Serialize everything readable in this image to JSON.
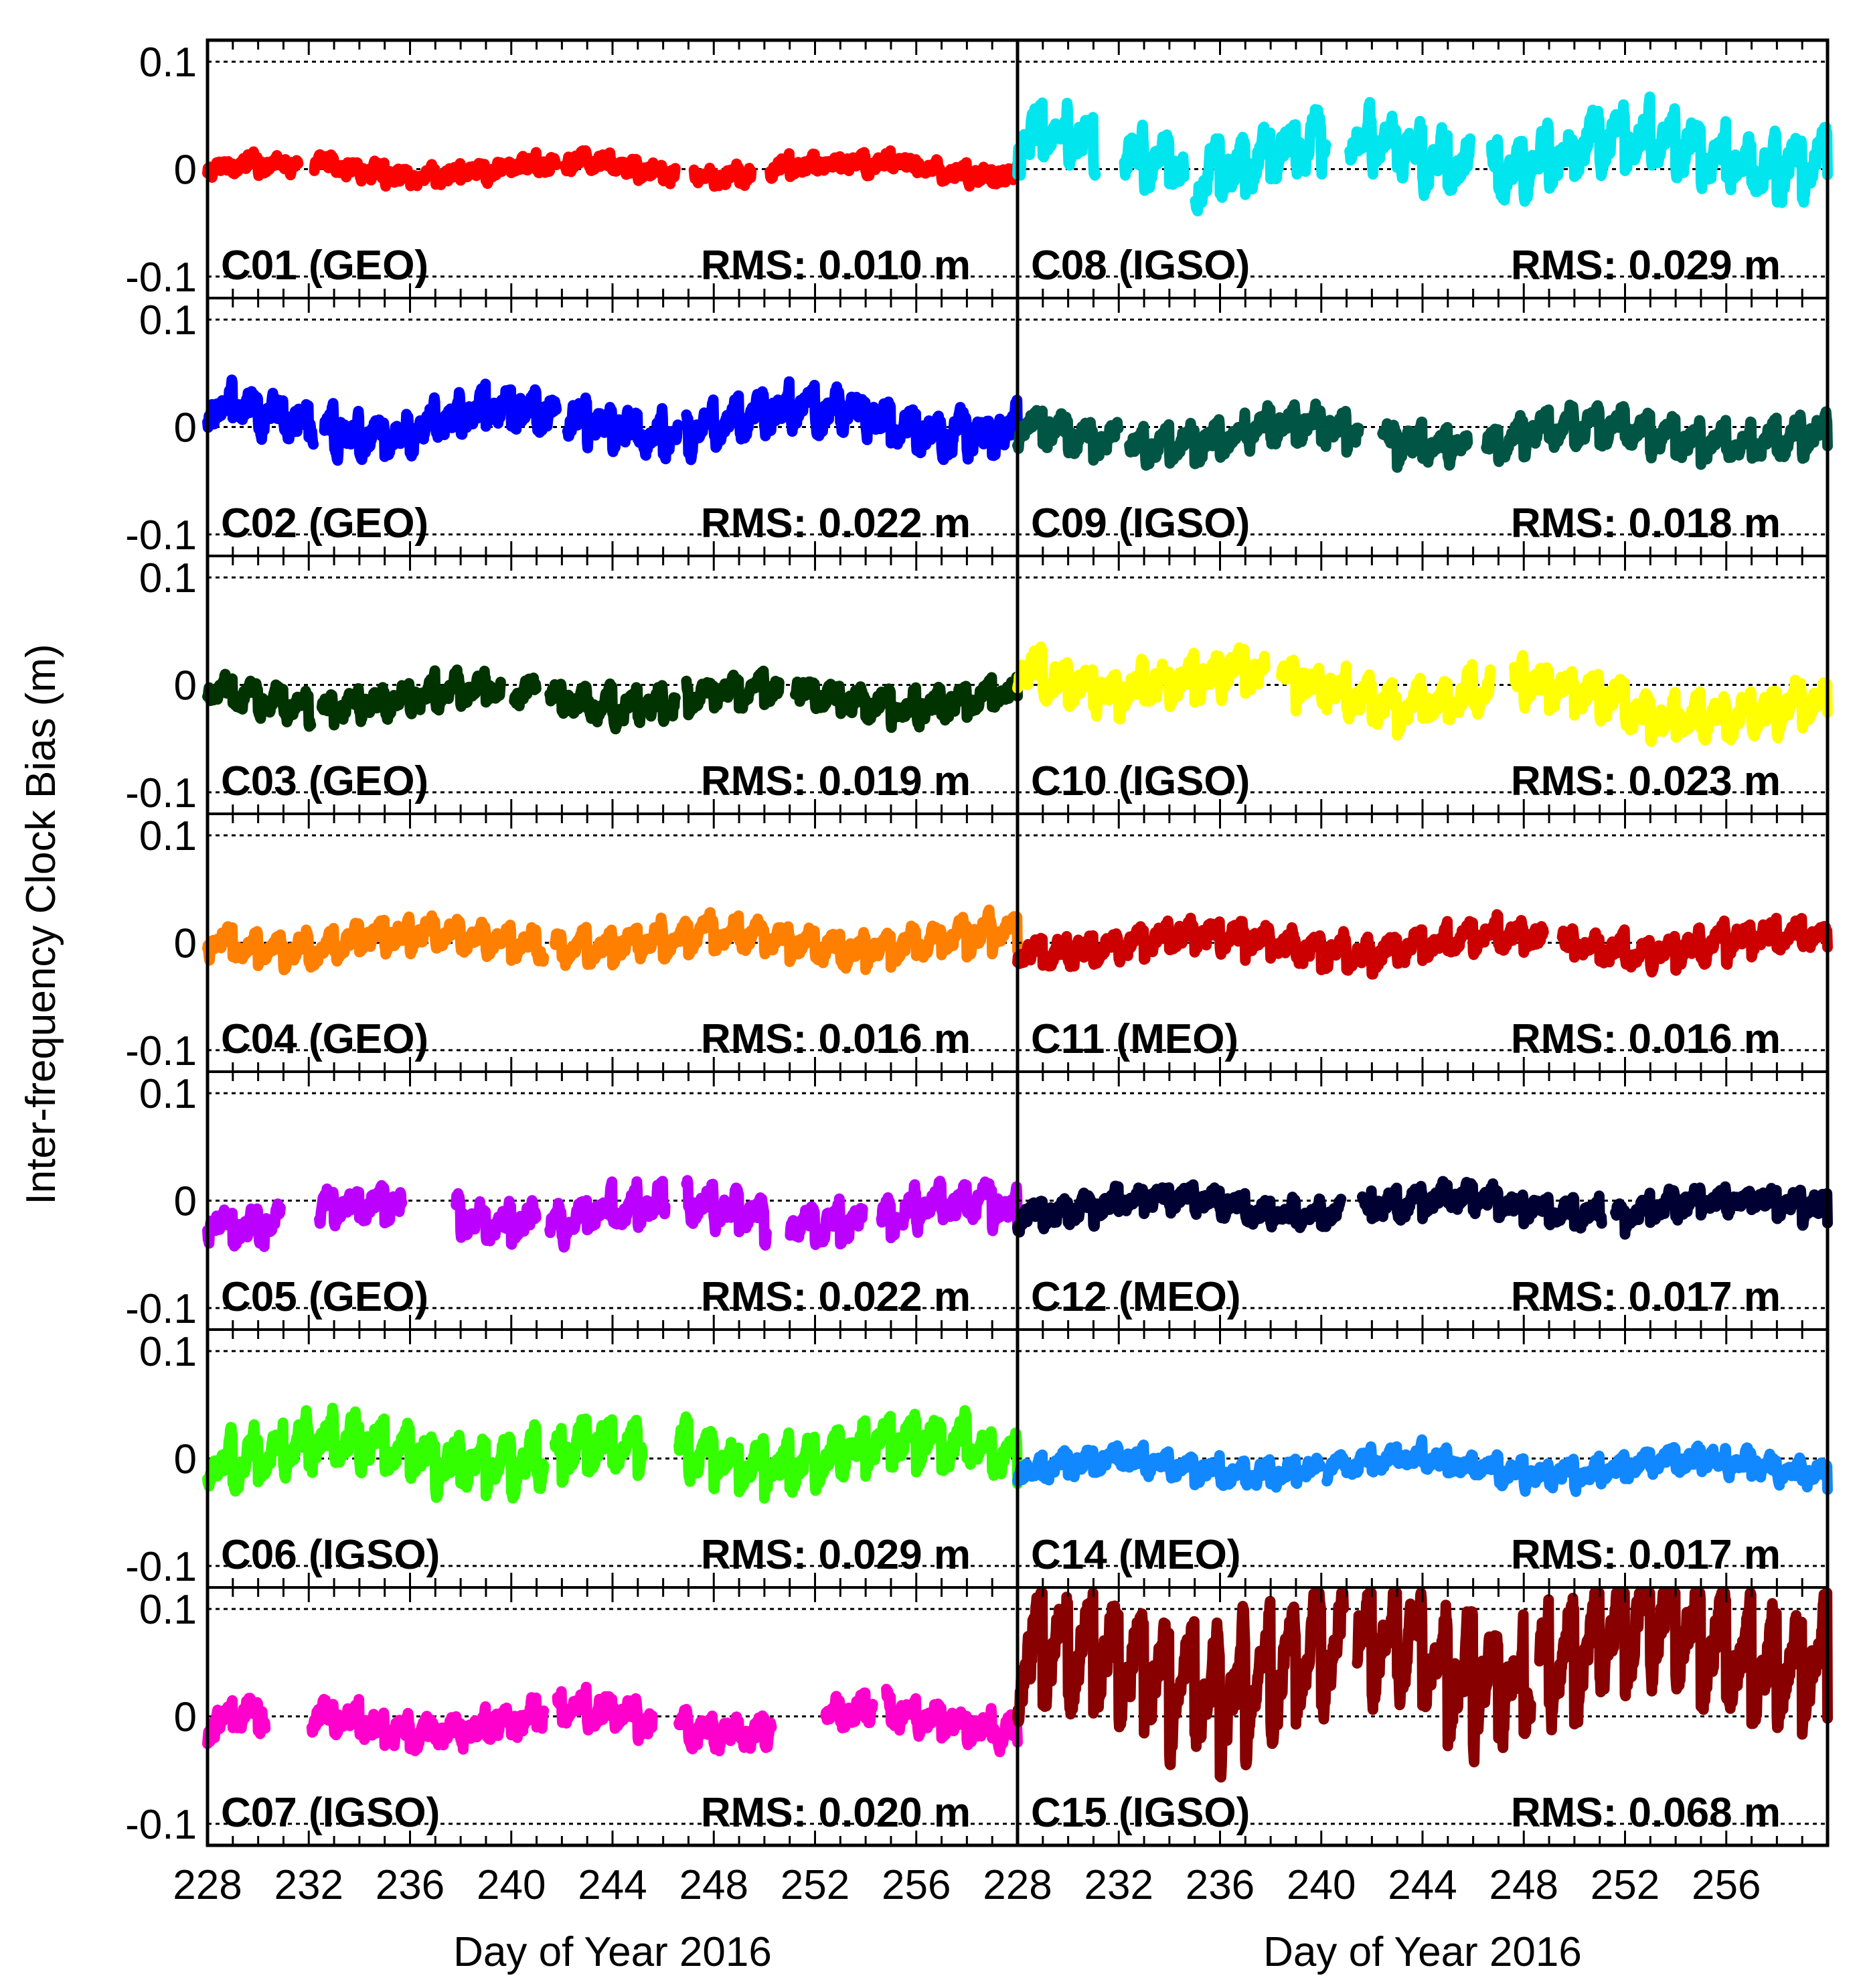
{
  "chart_data": {
    "type": "line",
    "ylabel": "Inter-frequency Clock Bias (m)",
    "xlabel": "Day of Year 2016",
    "xlim": [
      228,
      260
    ],
    "ylim": [
      -0.12,
      0.12
    ],
    "x_ticks": [
      "228",
      "232",
      "236",
      "240",
      "244",
      "248",
      "252",
      "256"
    ],
    "y_ticks": [
      {
        "value": 0.1,
        "label": "0.1"
      },
      {
        "value": 0,
        "label": "0"
      },
      {
        "value": -0.1,
        "label": "-0.1"
      }
    ],
    "rms_prefix": "RMS:",
    "panels": [
      {
        "id": "C01",
        "label": "C01 (GEO)",
        "orbit": "GEO",
        "rms": "RMS: 0.010 m",
        "color": "#ff0000",
        "column": 0,
        "row": 0,
        "amp": 0.011,
        "mean": 0.0,
        "osc": 0.007,
        "drift": 0.0,
        "gaps": [
          [
            231.6,
            232.2
          ],
          [
            241.8,
            242.1
          ],
          [
            246.5,
            247.2
          ],
          [
            249.5,
            250.2
          ]
        ]
      },
      {
        "id": "C02",
        "label": "C02 (GEO)",
        "orbit": "GEO",
        "rms": "RMS: 0.022 m",
        "color": "#0000ff",
        "column": 0,
        "row": 1,
        "amp": 0.02,
        "mean": 0.005,
        "osc": 0.02,
        "drift": 0.0,
        "gaps": [
          [
            232.2,
            232.6
          ],
          [
            241.8,
            242.2
          ],
          [
            246.6,
            246.9
          ]
        ]
      },
      {
        "id": "C03",
        "label": "C03 (GEO)",
        "orbit": "GEO",
        "rms": "RMS: 0.019 m",
        "color": "#003300",
        "column": 0,
        "row": 2,
        "amp": 0.015,
        "mean": -0.012,
        "osc": 0.015,
        "drift": 0.0,
        "gaps": [
          [
            232.1,
            232.5
          ],
          [
            239.6,
            240.1
          ],
          [
            241.0,
            241.5
          ],
          [
            246.5,
            246.9
          ],
          [
            250.6,
            251.2
          ]
        ]
      },
      {
        "id": "C04",
        "label": "C04 (GEO)",
        "orbit": "GEO",
        "rms": "RMS: 0.016 m",
        "color": "#ff7f00",
        "column": 0,
        "row": 3,
        "amp": 0.014,
        "mean": 0.002,
        "osc": 0.018,
        "drift": 0.0,
        "gaps": [
          [
            241.3,
            241.7
          ]
        ]
      },
      {
        "id": "C05",
        "label": "C05 (GEO)",
        "orbit": "GEO",
        "rms": "RMS: 0.022 m",
        "color": "#bb00ff",
        "column": 0,
        "row": 4,
        "amp": 0.018,
        "mean": -0.012,
        "osc": 0.02,
        "drift": 0.0,
        "gaps": [
          [
            230.9,
            232.4
          ],
          [
            235.7,
            237.8
          ],
          [
            241.0,
            241.5
          ],
          [
            246.1,
            246.9
          ],
          [
            250.1,
            251.0
          ],
          [
            253.9,
            254.6
          ]
        ]
      },
      {
        "id": "C06",
        "label": "C06 (IGSO)",
        "orbit": "IGSO",
        "rms": "RMS: 0.029 m",
        "color": "#33ff00",
        "column": 0,
        "row": 5,
        "amp": 0.02,
        "mean": 0.005,
        "osc": 0.03,
        "drift": 0.0,
        "gaps": [
          [
            241.3,
            241.7
          ],
          [
            245.2,
            246.6
          ]
        ]
      },
      {
        "id": "C07",
        "label": "C07 (IGSO)",
        "orbit": "IGSO",
        "rms": "RMS: 0.020 m",
        "color": "#ff00cc",
        "column": 0,
        "row": 6,
        "amp": 0.017,
        "mean": -0.005,
        "osc": 0.015,
        "drift": 0.0,
        "gaps": [
          [
            230.3,
            232.1
          ],
          [
            241.3,
            241.8
          ],
          [
            245.6,
            246.6
          ],
          [
            250.3,
            252.4
          ],
          [
            254.3,
            254.8
          ]
        ]
      },
      {
        "id": "C08",
        "label": "C08 (IGSO)",
        "orbit": "IGSO",
        "rms": "RMS: 0.029 m",
        "color": "#00e5ee",
        "column": 1,
        "row": 0,
        "amp": 0.025,
        "mean": 0.015,
        "osc": 0.03,
        "drift": 0.0,
        "gaps": [
          [
            231.1,
            232.2
          ],
          [
            234.6,
            235.0
          ],
          [
            240.2,
            241.1
          ],
          [
            245.9,
            246.7
          ]
        ]
      },
      {
        "id": "C09",
        "label": "C09 (IGSO)",
        "orbit": "IGSO",
        "rms": "RMS: 0.018 m",
        "color": "#005544",
        "column": 1,
        "row": 1,
        "amp": 0.016,
        "mean": -0.008,
        "osc": 0.02,
        "drift": 0.0,
        "gaps": [
          [
            232.0,
            232.4
          ],
          [
            241.5,
            242.4
          ],
          [
            245.8,
            246.5
          ]
        ]
      },
      {
        "id": "C10",
        "label": "C10 (IGSO)",
        "orbit": "IGSO",
        "rms": "RMS: 0.023 m",
        "color": "#ffff00",
        "column": 1,
        "row": 2,
        "amp": 0.02,
        "mean": 0.012,
        "osc": 0.022,
        "drift": -0.0012,
        "gaps": [
          [
            237.8,
            238.4
          ],
          [
            246.7,
            247.6
          ]
        ]
      },
      {
        "id": "C11",
        "label": "C11 (MEO)",
        "orbit": "MEO",
        "rms": "RMS: 0.016 m",
        "color": "#cc0000",
        "column": 1,
        "row": 3,
        "amp": 0.014,
        "mean": 0.0,
        "osc": 0.016,
        "drift": 0.0,
        "gaps": [
          [
            248.8,
            249.5
          ]
        ]
      },
      {
        "id": "C12",
        "label": "C12 (MEO)",
        "orbit": "MEO",
        "rms": "RMS: 0.017 m",
        "color": "#000033",
        "column": 1,
        "row": 4,
        "amp": 0.013,
        "mean": -0.005,
        "osc": 0.015,
        "drift": 0.0,
        "gaps": [
          [
            240.8,
            241.6
          ],
          [
            251.1,
            251.6
          ]
        ]
      },
      {
        "id": "C14",
        "label": "C14 (MEO)",
        "orbit": "MEO",
        "rms": "RMS: 0.017 m",
        "color": "#1188ff",
        "column": 1,
        "row": 5,
        "amp": 0.012,
        "mean": -0.008,
        "osc": 0.012,
        "drift": 0.0,
        "gaps": [
          [
            240.0,
            240.2
          ]
        ]
      },
      {
        "id": "C15",
        "label": "C15 (IGSO)",
        "orbit": "IGSO",
        "rms": "RMS: 0.068 m",
        "color": "#880000",
        "column": 1,
        "row": 6,
        "amp": 0.04,
        "mean": 0.04,
        "osc": 0.075,
        "drift": 0.0009,
        "gaps": [
          [
            240.9,
            241.4
          ],
          [
            248.3,
            248.6
          ]
        ]
      }
    ]
  }
}
